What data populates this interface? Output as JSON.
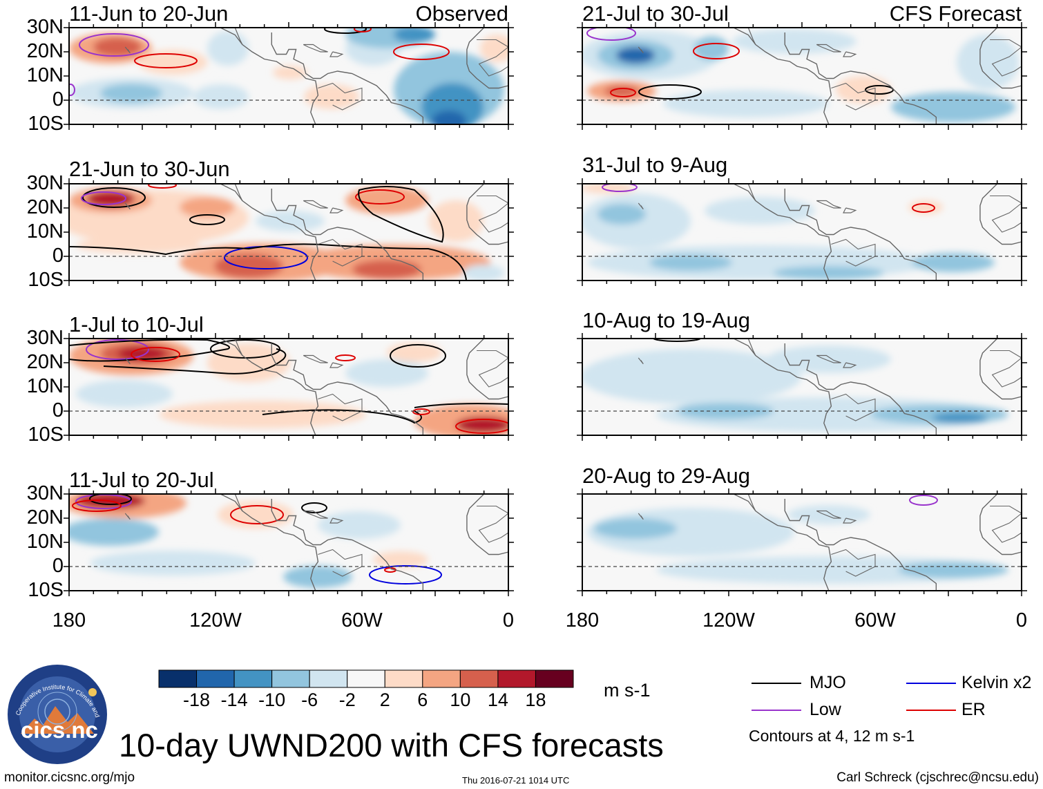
{
  "panels": [
    {
      "title": "11-Jun to 20-Jun",
      "label": "Observed"
    },
    {
      "title": "21-Jul to 30-Jul",
      "label": "CFS Forecast"
    },
    {
      "title": "21-Jun to 30-Jun",
      "label": ""
    },
    {
      "title": "31-Jul to 9-Aug",
      "label": ""
    },
    {
      "title": "1-Jul to 10-Jul",
      "label": ""
    },
    {
      "title": "10-Aug to 19-Aug",
      "label": ""
    },
    {
      "title": "11-Jul to 20-Jul",
      "label": ""
    },
    {
      "title": "20-Aug to 29-Aug",
      "label": ""
    }
  ],
  "lat_labels": [
    "30N",
    "20N",
    "10N",
    "0",
    "10S"
  ],
  "lon_labels": [
    "180",
    "120W",
    "60W",
    "0"
  ],
  "colorbar": {
    "colors": [
      "#08306b",
      "#2166ac",
      "#4393c3",
      "#92c5de",
      "#d1e5f0",
      "#f7f7f7",
      "#fddbc7",
      "#f4a582",
      "#d6604d",
      "#b2182b",
      "#67001f"
    ],
    "labels": [
      "-18",
      "-14",
      "-10",
      "-6",
      "-2",
      "2",
      "6",
      "10",
      "14",
      "18"
    ],
    "units": "m s-1"
  },
  "legend": {
    "items": [
      {
        "label": "MJO",
        "color": "#000000"
      },
      {
        "label": "Kelvin x2",
        "color": "#0000dd"
      },
      {
        "label": "Low",
        "color": "#9933cc"
      },
      {
        "label": "ER",
        "color": "#dd0000"
      }
    ],
    "note": "Contours at 4, 12 m s-1"
  },
  "logo_text": "cics.nc",
  "logo_ring_text": "Cooperative Institute for Climate and Satellites",
  "main_title": "10-day UWND200 with CFS forecasts",
  "footer": {
    "left": "monitor.cicsnc.org/mjo",
    "center": "Thu 2016-07-21 1014 UTC",
    "right": "Carl Schreck (cjschrec@ncsu.edu)"
  }
}
